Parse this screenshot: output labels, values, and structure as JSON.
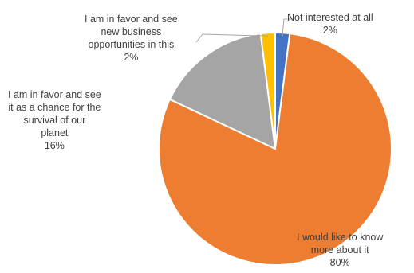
{
  "chart_data": {
    "type": "pie",
    "title": "",
    "legend": "none",
    "slices": [
      {
        "label_lines": [
          "Not interested at all"
        ],
        "value": 2,
        "display": "2%",
        "color": "#4472C4"
      },
      {
        "label_lines": [
          "I would like to know",
          "more about it"
        ],
        "value": 80,
        "display": "80%",
        "color": "#ED7D31"
      },
      {
        "label_lines": [
          "I am in favor and see",
          "it as a chance for the",
          "survival of our",
          "planet"
        ],
        "value": 16,
        "display": "16%",
        "color": "#A5A5A5"
      },
      {
        "label_lines": [
          "I am in favor and see",
          "new business",
          "opportunities in this"
        ],
        "value": 2,
        "display": "2%",
        "color": "#FFC000"
      }
    ]
  }
}
